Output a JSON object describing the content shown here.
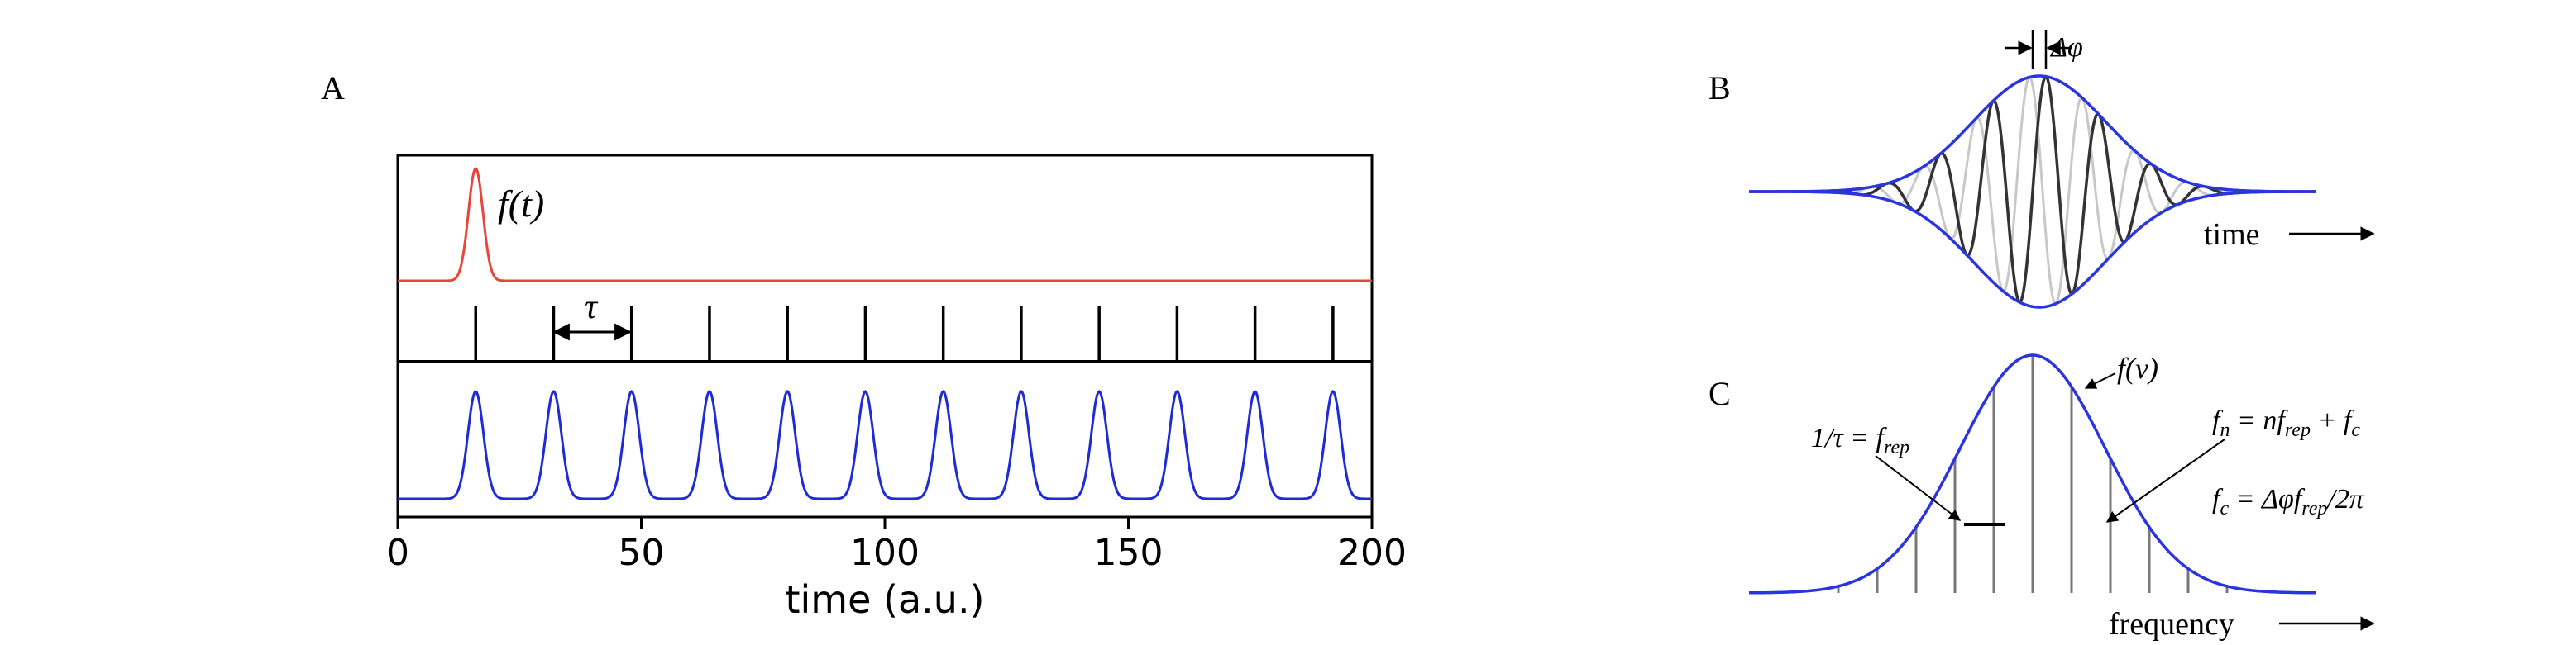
{
  "panels": {
    "a": {
      "label": "A",
      "pulse_label": "f(t)",
      "tau_label": "τ",
      "xlabel": "time (a.u.)",
      "xticks": [
        0,
        50,
        100,
        150,
        200
      ],
      "xlim": [
        0,
        200
      ],
      "first_pulse_time": 16,
      "pulse_period": 16,
      "pulse_count": 12,
      "colors": {
        "pulse": "#e8463a",
        "train": "#1f2bd6",
        "comb": "#000000"
      }
    },
    "b": {
      "label": "B",
      "phase_label": "Δφ",
      "time_label": "time",
      "colors": {
        "envelope": "#2a35e0",
        "carrier": "#333333",
        "carrier_ghost": "#c8c8c8"
      }
    },
    "c": {
      "label": "C",
      "spectrum_label": "f(ν)",
      "rep_label": "1/τ = f",
      "rep_sub": "rep",
      "fn_text": "f",
      "fn_sub": "n",
      "fn_eq": " = nf",
      "fn_sub2": "rep",
      "fn_tail": " + f",
      "fn_sub3": "c",
      "fc_text": "f",
      "fc_sub": "c",
      "fc_eq": " = Δφf",
      "fc_sub2": "rep",
      "fc_tail": "/2π",
      "freq_label": "frequency",
      "colors": {
        "envelope": "#2a35e0",
        "lines": "#777777"
      }
    }
  }
}
